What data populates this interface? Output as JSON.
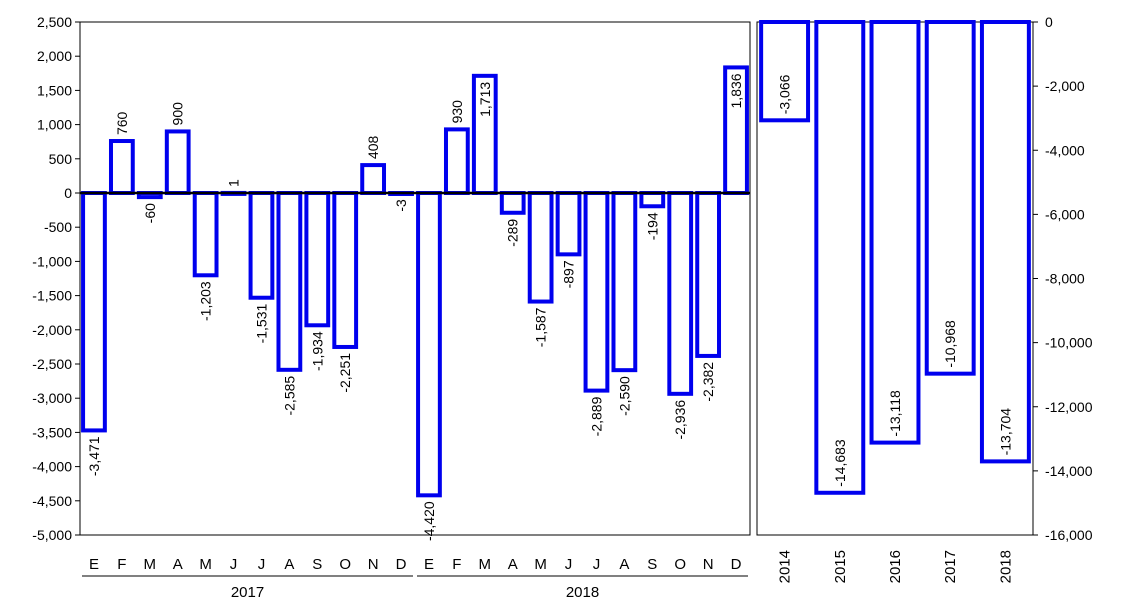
{
  "chart_data": [
    {
      "type": "bar",
      "group_labels": [
        "2017",
        "2018"
      ],
      "categories": [
        "E",
        "F",
        "M",
        "A",
        "M",
        "J",
        "J",
        "A",
        "S",
        "O",
        "N",
        "D",
        "E",
        "F",
        "M",
        "A",
        "M",
        "J",
        "J",
        "A",
        "S",
        "O",
        "N",
        "D"
      ],
      "values": [
        -3471,
        760,
        -60,
        900,
        -1203,
        1,
        -1531,
        -2585,
        -1934,
        -2251,
        408,
        -3,
        -4420,
        930,
        1713,
        -289,
        -1587,
        -897,
        -2889,
        -2590,
        -194,
        -2936,
        -2382,
        1836
      ],
      "value_labels": [
        "-3,471",
        "760",
        "-60",
        "900",
        "-1,203",
        "1",
        "-1,531",
        "-2,585",
        "-1,934",
        "-2,251",
        "408",
        "-3",
        "-4,420",
        "930",
        "1,713",
        "-289",
        "-1,587",
        "-897",
        "-2,889",
        "-2,590",
        "-194",
        "-2,936",
        "-2,382",
        "1,836"
      ],
      "ylim": [
        -5000,
        2500
      ],
      "yticks": [
        "2,500",
        "2,000",
        "1,500",
        "1,000",
        "500",
        "0",
        "-500",
        "-1,000",
        "-1,500",
        "-2,000",
        "-2,500",
        "-3,000",
        "-3,500",
        "-4,000",
        "-4,500",
        "-5,000"
      ],
      "grid": false,
      "bar_style": "outline",
      "color": "#0000ee"
    },
    {
      "type": "bar",
      "categories": [
        "2014",
        "2015",
        "2016",
        "2017",
        "2018"
      ],
      "values": [
        -3066,
        -14683,
        -13118,
        -10968,
        -13704
      ],
      "value_labels": [
        "-3,066",
        "-14,683",
        "-13,118",
        "-10,968",
        "-13,704"
      ],
      "ylim": [
        -16000,
        0
      ],
      "yticks": [
        "0",
        "-2,000",
        "-4,000",
        "-6,000",
        "-8,000",
        "-10,000",
        "-12,000",
        "-14,000",
        "-16,000"
      ],
      "yaxis_side": "right",
      "grid": false,
      "bar_style": "outline",
      "color": "#0000ee"
    }
  ]
}
